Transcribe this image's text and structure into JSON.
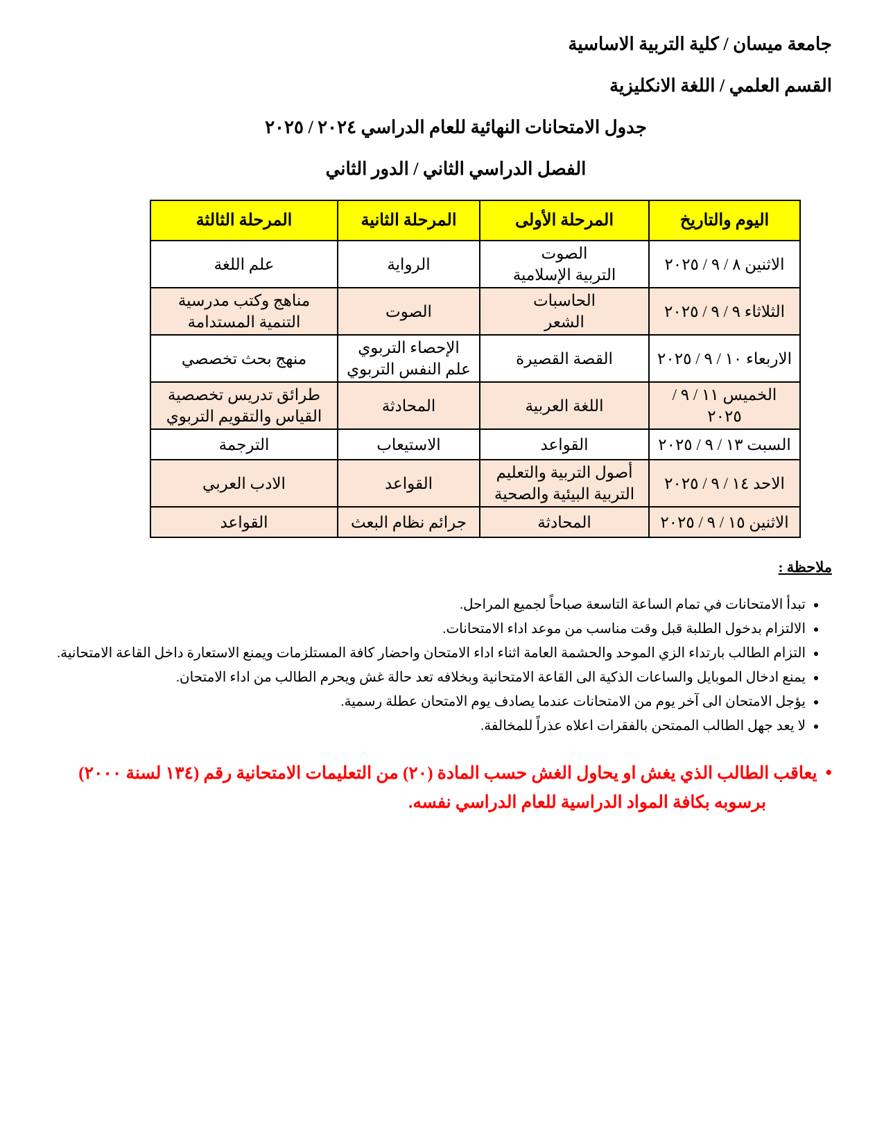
{
  "header": {
    "line1": "جامعة ميسان / كلية التربية الاساسية",
    "line2": "القسم العلمي / اللغة الانكليزية",
    "line3": "جدول الامتحانات النهائية للعام الدراسي ٢٠٢٤ / ٢٠٢٥",
    "line4": "الفصل الدراسي الثاني / الدور الثاني"
  },
  "table": {
    "columns": [
      "اليوم والتاريخ",
      "المرحلة الأولى",
      "المرحلة الثانية",
      "المرحلة الثالثة"
    ],
    "rows": [
      {
        "date": "الاثنين ٨ / ٩ / ٢٠٢٥",
        "stage1": "الصوت\nالتربية الإسلامية",
        "stage2": "الرواية",
        "stage3": "علم اللغة"
      },
      {
        "date": "الثلاثاء ٩ / ٩ / ٢٠٢٥",
        "stage1": "الحاسبات\nالشعر",
        "stage2": "الصوت",
        "stage3": "مناهج وكتب مدرسية\nالتنمية المستدامة"
      },
      {
        "date": "الاربعاء ١٠ / ٩ / ٢٠٢٥",
        "stage1": "القصة القصيرة",
        "stage2": "الإحصاء التربوي\nعلم النفس التربوي",
        "stage3": "منهج بحث تخصصي"
      },
      {
        "date": "الخميس ١١ / ٩ / ٢٠٢٥",
        "stage1": "اللغة العربية",
        "stage2": "المحادثة",
        "stage3": "طرائق تدريس تخصصية\nالقياس والتقويم التربوي"
      },
      {
        "date": "السبت ١٣ / ٩ / ٢٠٢٥",
        "stage1": "القواعد",
        "stage2": "الاستيعاب",
        "stage3": "الترجمة"
      },
      {
        "date": "الاحد ١٤ / ٩ / ٢٠٢٥",
        "stage1": "أصول التربية والتعليم\nالتربية البيئية والصحية",
        "stage2": "القواعد",
        "stage3": "الادب العربي"
      },
      {
        "date": "الاثنين ١٥ / ٩ / ٢٠٢٥",
        "stage1": "المحادثة",
        "stage2": "جرائم نظام البعث",
        "stage3": "القواعد"
      }
    ]
  },
  "notes": {
    "heading": "ملاحظة :",
    "items": [
      "تبدأ الامتحانات في تمام الساعة التاسعة صباحاً لجميع المراحل.",
      "الالتزام بدخول الطلبة قبل وقت مناسب من موعد اداء الامتحانات.",
      "التزام الطالب بارتداء الزي الموحد والحشمة العامة اثناء اداء الامتحان واحضار كافة المستلزمات ويمنع الاستعارة داخل القاعة الامتحانية.",
      "يمنع ادخال الموبايل والساعات الذكية الى القاعة الامتحانية وبخلافه تعد حالة غش ويحرم الطالب من اداء الامتحان.",
      "يؤجل الامتحان الى آخر يوم من الامتحانات عندما يصادف يوم الامتحان عطلة رسمية.",
      "لا يعد جهل الطالب الممتحن بالفقرات اعلاه عذراً للمخالفة."
    ],
    "warning": "يعاقب الطالب الذي يغش او يحاول الغش حسب المادة (٢٠) من التعليمات الامتحانية رقم (١٣٤ لسنة ٢٠٠٠) برسوبه بكافة المواد الدراسية للعام الدراسي نفسه."
  },
  "colors": {
    "table_header_fill": "#FFFF00",
    "shaded_row_fill": "#FBE5D6",
    "warning_text": "#FF0000",
    "table_border": "#000000"
  }
}
